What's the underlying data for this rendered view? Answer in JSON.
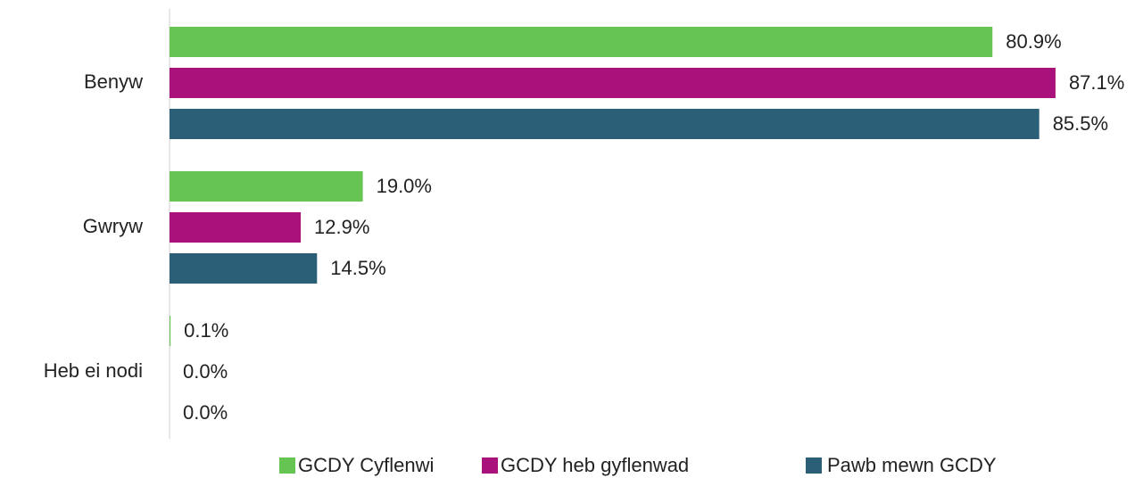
{
  "chart_data": {
    "type": "bar",
    "orientation": "horizontal",
    "categories": [
      "Benyw",
      "Gwryw",
      "Heb ei nodi"
    ],
    "series": [
      {
        "name": "GCDY Cyflenwi",
        "color": "#66c452",
        "values": [
          80.9,
          19.0,
          0.1
        ],
        "value_labels": [
          "80.9%",
          "19.0%",
          "0.1%"
        ]
      },
      {
        "name": "GCDY heb gyflenwad",
        "color": "#a8127a",
        "values": [
          87.1,
          12.9,
          0.0
        ],
        "value_labels": [
          "87.1%",
          "12.9%",
          "0.0%"
        ]
      },
      {
        "name": "Pawb mewn GCDY",
        "color": "#2b5f77",
        "values": [
          85.5,
          14.5,
          0.0
        ],
        "value_labels": [
          "85.5%",
          "14.5%",
          "0.0%"
        ]
      }
    ],
    "xlim": [
      0,
      100
    ],
    "legend": "bottom"
  }
}
